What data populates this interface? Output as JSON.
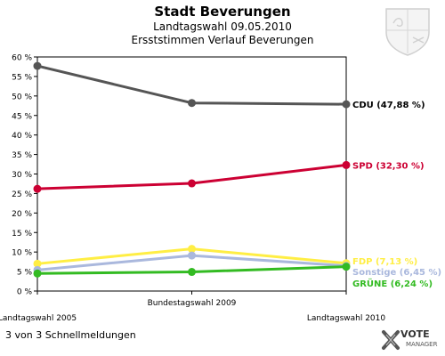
{
  "header": {
    "title": "Stadt Beverungen",
    "subtitle1": "Landtagswahl 09.05.2010",
    "subtitle2": "Ersststimmen Verlauf Beverungen"
  },
  "footer": {
    "text": "3 von 3 Schnellmeldungen",
    "logo_main": "VOTE",
    "logo_sub": "MANAGER"
  },
  "colors": {
    "CDU": "#555555",
    "SPD": "#cc0033",
    "FDP": "#ffee44",
    "Sonstige": "#aab8dd",
    "GRUENE": "#33bb22"
  },
  "chart_data": {
    "type": "line",
    "x": [
      "Landtagswahl 2005",
      "Bundestagswahl 2009",
      "Landtagswahl 2010"
    ],
    "ylim": [
      0,
      60
    ],
    "yticks": [
      "0 %",
      "5 %",
      "10 %",
      "15 %",
      "20 %",
      "25 %",
      "30 %",
      "35 %",
      "40 %",
      "45 %",
      "50 %",
      "55 %",
      "60 %"
    ],
    "grid": false,
    "series": [
      {
        "name": "CDU",
        "label": "CDU (47,88 %)",
        "values": [
          57.7,
          48.2,
          47.88
        ],
        "colorKey": "CDU"
      },
      {
        "name": "SPD",
        "label": "SPD (32,30 %)",
        "values": [
          26.2,
          27.6,
          32.3
        ],
        "colorKey": "SPD"
      },
      {
        "name": "FDP",
        "label": "FDP (7,13 %)",
        "values": [
          7.0,
          10.8,
          7.13
        ],
        "colorKey": "FDP"
      },
      {
        "name": "Sonstige",
        "label": "Sonstige (6,45 %)",
        "values": [
          5.4,
          9.1,
          6.45
        ],
        "colorKey": "Sonstige"
      },
      {
        "name": "GRÜNE",
        "label": "GRÜNE (6,24 %)",
        "values": [
          4.5,
          4.9,
          6.24
        ],
        "colorKey": "GRUENE"
      }
    ]
  }
}
